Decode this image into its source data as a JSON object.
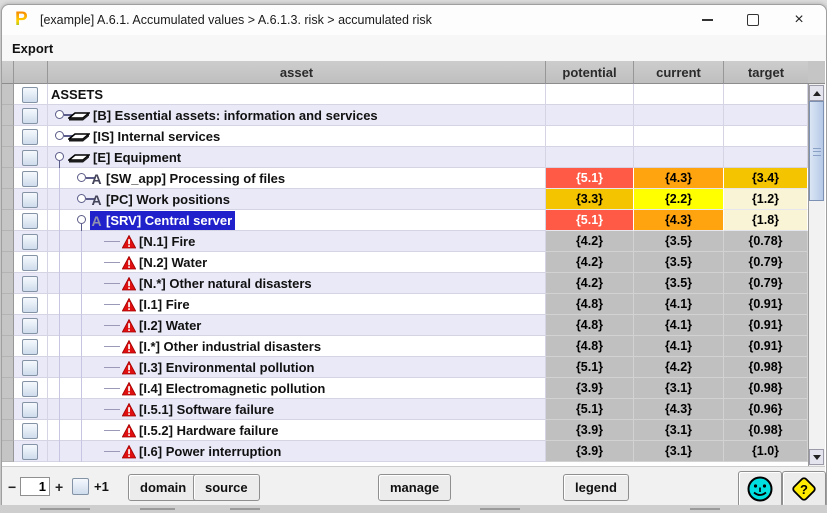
{
  "window": {
    "title": "[example] A.6.1. Accumulated values > A.6.1.3. risk > accumulated risk",
    "app_icon_letter": "P"
  },
  "menu": {
    "export_label": "Export"
  },
  "table": {
    "columns": {
      "asset": "asset",
      "potential": "potential",
      "current": "current",
      "target": "target"
    },
    "rows": [
      {
        "label": "ASSETS",
        "level": 0,
        "kind": "root",
        "values": null
      },
      {
        "label": "[B] Essential assets: information and services",
        "level": 1,
        "kind": "group",
        "expanded": false,
        "icon": "layer-icon",
        "values": null
      },
      {
        "label": "[IS] Internal services",
        "level": 1,
        "kind": "group",
        "expanded": false,
        "icon": "layer-icon",
        "values": null
      },
      {
        "label": "[E] Equipment",
        "level": 1,
        "kind": "group",
        "expanded": true,
        "icon": "layer-icon",
        "values": null
      },
      {
        "label": "[SW_app] Processing of files",
        "level": 2,
        "kind": "asset",
        "expanded": false,
        "icon": "asset-a-icon",
        "selected": false,
        "values": [
          {
            "t": "{5.1}",
            "bg": "red",
            "fg": "white"
          },
          {
            "t": "{4.3}",
            "bg": "orange",
            "fg": "black"
          },
          {
            "t": "{3.4}",
            "bg": "gold",
            "fg": "black"
          }
        ]
      },
      {
        "label": "[PC] Work positions",
        "level": 2,
        "kind": "asset",
        "expanded": false,
        "icon": "asset-a-icon",
        "selected": false,
        "values": [
          {
            "t": "{3.3}",
            "bg": "gold",
            "fg": "black"
          },
          {
            "t": "{2.2}",
            "bg": "yellow",
            "fg": "black"
          },
          {
            "t": "{1.2}",
            "bg": "cream",
            "fg": "black"
          }
        ]
      },
      {
        "label": "[SRV] Central server",
        "level": 2,
        "kind": "asset",
        "expanded": true,
        "icon": "asset-a-icon",
        "selected": true,
        "values": [
          {
            "t": "{5.1}",
            "bg": "red",
            "fg": "white"
          },
          {
            "t": "{4.3}",
            "bg": "orange",
            "fg": "black"
          },
          {
            "t": "{1.8}",
            "bg": "cream",
            "fg": "black"
          }
        ]
      },
      {
        "label": "[N.1] Fire",
        "level": 3,
        "kind": "threat",
        "icon": "warning-icon",
        "values": [
          {
            "t": "{4.2}",
            "bg": "gray",
            "fg": "black"
          },
          {
            "t": "{3.5}",
            "bg": "gray",
            "fg": "black"
          },
          {
            "t": "{0.78}",
            "bg": "gray",
            "fg": "black"
          }
        ]
      },
      {
        "label": "[N.2] Water",
        "level": 3,
        "kind": "threat",
        "icon": "warning-icon",
        "values": [
          {
            "t": "{4.2}",
            "bg": "gray",
            "fg": "black"
          },
          {
            "t": "{3.5}",
            "bg": "gray",
            "fg": "black"
          },
          {
            "t": "{0.79}",
            "bg": "gray",
            "fg": "black"
          }
        ]
      },
      {
        "label": "[N.*] Other natural disasters",
        "level": 3,
        "kind": "threat",
        "icon": "warning-icon",
        "values": [
          {
            "t": "{4.2}",
            "bg": "gray",
            "fg": "black"
          },
          {
            "t": "{3.5}",
            "bg": "gray",
            "fg": "black"
          },
          {
            "t": "{0.79}",
            "bg": "gray",
            "fg": "black"
          }
        ]
      },
      {
        "label": "[I.1] Fire",
        "level": 3,
        "kind": "threat",
        "icon": "warning-icon",
        "values": [
          {
            "t": "{4.8}",
            "bg": "gray",
            "fg": "black"
          },
          {
            "t": "{4.1}",
            "bg": "gray",
            "fg": "black"
          },
          {
            "t": "{0.91}",
            "bg": "gray",
            "fg": "black"
          }
        ]
      },
      {
        "label": "[I.2] Water",
        "level": 3,
        "kind": "threat",
        "icon": "warning-icon",
        "values": [
          {
            "t": "{4.8}",
            "bg": "gray",
            "fg": "black"
          },
          {
            "t": "{4.1}",
            "bg": "gray",
            "fg": "black"
          },
          {
            "t": "{0.91}",
            "bg": "gray",
            "fg": "black"
          }
        ]
      },
      {
        "label": "[I.*] Other industrial disasters",
        "level": 3,
        "kind": "threat",
        "icon": "warning-icon",
        "values": [
          {
            "t": "{4.8}",
            "bg": "gray",
            "fg": "black"
          },
          {
            "t": "{4.1}",
            "bg": "gray",
            "fg": "black"
          },
          {
            "t": "{0.91}",
            "bg": "gray",
            "fg": "black"
          }
        ]
      },
      {
        "label": "[I.3] Environmental pollution",
        "level": 3,
        "kind": "threat",
        "icon": "warning-icon",
        "values": [
          {
            "t": "{5.1}",
            "bg": "gray",
            "fg": "black"
          },
          {
            "t": "{4.2}",
            "bg": "gray",
            "fg": "black"
          },
          {
            "t": "{0.98}",
            "bg": "gray",
            "fg": "black"
          }
        ]
      },
      {
        "label": "[I.4] Electromagnetic pollution",
        "level": 3,
        "kind": "threat",
        "icon": "warning-icon",
        "values": [
          {
            "t": "{3.9}",
            "bg": "gray",
            "fg": "black"
          },
          {
            "t": "{3.1}",
            "bg": "gray",
            "fg": "black"
          },
          {
            "t": "{0.98}",
            "bg": "gray",
            "fg": "black"
          }
        ]
      },
      {
        "label": "[I.5.1] Software failure",
        "level": 3,
        "kind": "threat",
        "icon": "warning-icon",
        "values": [
          {
            "t": "{5.1}",
            "bg": "gray",
            "fg": "black"
          },
          {
            "t": "{4.3}",
            "bg": "gray",
            "fg": "black"
          },
          {
            "t": "{0.96}",
            "bg": "gray",
            "fg": "black"
          }
        ]
      },
      {
        "label": "[I.5.2] Hardware failure",
        "level": 3,
        "kind": "threat",
        "icon": "warning-icon",
        "values": [
          {
            "t": "{3.9}",
            "bg": "gray",
            "fg": "black"
          },
          {
            "t": "{3.1}",
            "bg": "gray",
            "fg": "black"
          },
          {
            "t": "{0.98}",
            "bg": "gray",
            "fg": "black"
          }
        ]
      },
      {
        "label": "[I.6] Power interruption",
        "level": 3,
        "kind": "threat",
        "icon": "warning-icon",
        "values": [
          {
            "t": "{3.9}",
            "bg": "gray",
            "fg": "black"
          },
          {
            "t": "{3.1}",
            "bg": "gray",
            "fg": "black"
          },
          {
            "t": "{1.0}",
            "bg": "gray",
            "fg": "black"
          }
        ]
      }
    ]
  },
  "toolbar": {
    "minus_label": "−",
    "counter_value": "1",
    "plus_label": "+",
    "plus_one_label": "+1",
    "domain_label": "domain",
    "source_label": "source",
    "manage_label": "manage",
    "legend_label": "legend"
  },
  "icons": {
    "close": "×",
    "smiley": "smiley-face",
    "help": "question-diamond"
  },
  "colors": {
    "red": "#ff5a45",
    "orange": "#ffa30f",
    "gold": "#f5c400",
    "yellow": "#ffff00",
    "cream": "#faf4d6",
    "gray": "#c0c0c0",
    "selection": "#2121cc",
    "row_alt": "#e9e9f8",
    "row_base": "#ffffff",
    "white_text": "#ffffff",
    "black_text": "#000000"
  }
}
